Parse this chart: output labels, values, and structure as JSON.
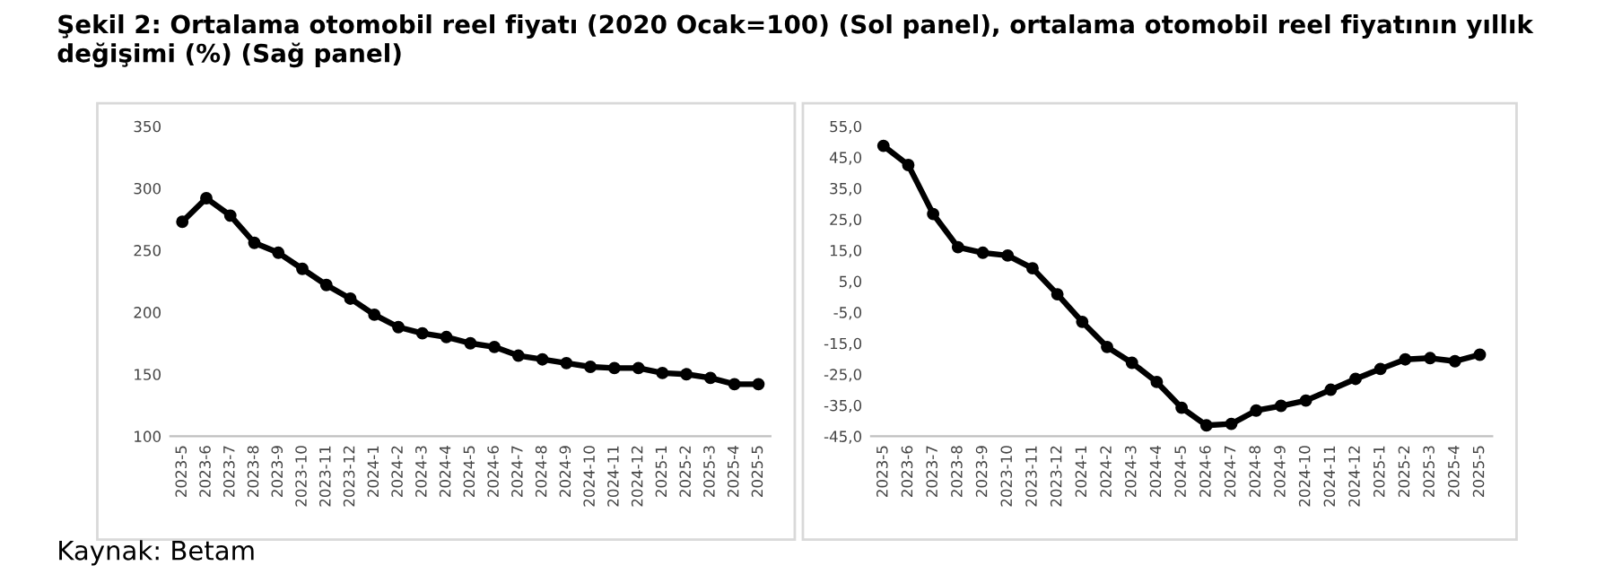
{
  "chart_data": [
    {
      "type": "line",
      "title": "Şekil 2: Ortalama otomobil reel fiyatı (2020 Ocak=100) (Sol panel), ortalama otomobil reel fiyatının yıllık değişimi (%) (Sağ panel)",
      "annotations": [
        "Kaynak: Betam"
      ],
      "categories": [
        "2023-5",
        "2023-6",
        "2023-7",
        "2023-8",
        "2023-9",
        "2023-10",
        "2023-11",
        "2023-12",
        "2024-1",
        "2024-2",
        "2024-3",
        "2024-4",
        "2024-5",
        "2024-6",
        "2024-7",
        "2024-8",
        "2024-9",
        "2024-10",
        "2024-11",
        "2024-12",
        "2025-1",
        "2025-2",
        "2025-3",
        "2025-4",
        "2025-5"
      ],
      "series": [
        {
          "color": "#000000",
          "values": [
            273,
            292,
            278,
            256,
            248,
            235,
            222,
            211,
            198,
            188,
            183,
            180,
            175,
            172,
            165,
            162,
            159,
            156,
            155,
            155,
            151,
            150,
            147,
            142,
            142
          ]
        }
      ],
      "ylim": [
        100,
        350
      ],
      "yticks": [
        100,
        150,
        200,
        250,
        300,
        350
      ],
      "marker": "circle",
      "line_style": "solid"
    },
    {
      "type": "line",
      "categories": [
        "2023-5",
        "2023-6",
        "2023-7",
        "2023-8",
        "2023-9",
        "2023-10",
        "2023-11",
        "2023-12",
        "2024-1",
        "2024-2",
        "2024-3",
        "2024-4",
        "2024-5",
        "2024-6",
        "2024-7",
        "2024-8",
        "2024-9",
        "2024-10",
        "2024-11",
        "2024-12",
        "2025-1",
        "2025-2",
        "2025-3",
        "2025-4",
        "2025-5"
      ],
      "series": [
        {
          "color": "#000000",
          "values": [
            48.7,
            42.5,
            26.7,
            16.0,
            14.2,
            13.3,
            9.2,
            0.8,
            -8.1,
            -16.2,
            -21.3,
            -27.5,
            -35.8,
            -41.5,
            -41.0,
            -36.7,
            -35.2,
            -33.5,
            -30.0,
            -26.5,
            -23.3,
            -20.2,
            -19.8,
            -20.8,
            -18.7
          ]
        }
      ],
      "ylim": [
        -45,
        55
      ],
      "yticks": [
        {
          "value": -45,
          "label": "-45,0"
        },
        {
          "value": -35,
          "label": "-35,0"
        },
        {
          "value": -25,
          "label": "-25,0"
        },
        {
          "value": -15,
          "label": "-15,0"
        },
        {
          "value": -5,
          "label": "-5,0"
        },
        {
          "value": 5,
          "label": "5,0"
        },
        {
          "value": 15,
          "label": "15,0"
        },
        {
          "value": 25,
          "label": "25,0"
        },
        {
          "value": 35,
          "label": "35,0"
        },
        {
          "value": 45,
          "label": "45,0"
        },
        {
          "value": 55,
          "label": "55,0"
        }
      ],
      "marker": "circle",
      "line_style": "solid"
    }
  ]
}
